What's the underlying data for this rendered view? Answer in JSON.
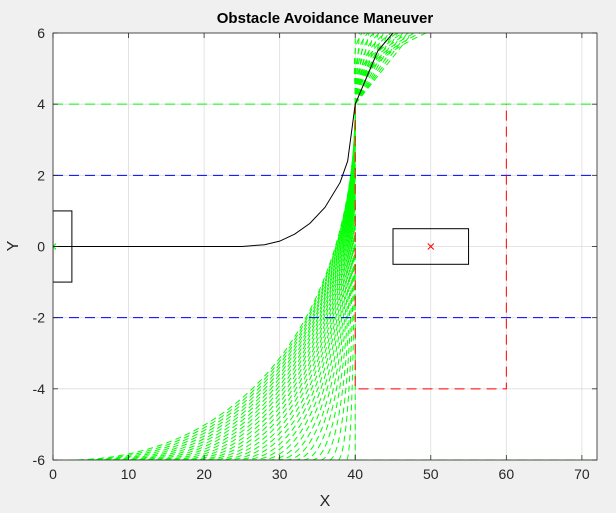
{
  "chart_data": {
    "type": "line",
    "title": "Obstacle Avoidance Maneuver",
    "xlabel": "X",
    "ylabel": "Y",
    "xlim": [
      0,
      72
    ],
    "ylim": [
      -6,
      6
    ],
    "x_ticks": [
      "0",
      "10",
      "20",
      "30",
      "40",
      "50",
      "60",
      "70"
    ],
    "y_ticks": [
      "6",
      "4",
      "2",
      "0",
      "-2",
      "-4",
      "-6"
    ],
    "grid": true,
    "colors": {
      "path": "#000000",
      "fan": "#00ff00",
      "lane_blue": "#0000ff",
      "lane_green": "#00ff00",
      "zone_red": "#ff0000",
      "box": "#000000"
    },
    "lane_lines": [
      {
        "y": 4,
        "style": "dashed",
        "color": "green"
      },
      {
        "y": 2,
        "style": "dashed",
        "color": "blue"
      },
      {
        "y": -2,
        "style": "dashed",
        "color": "blue"
      },
      {
        "y": -6,
        "style": "dashed",
        "color": "green"
      }
    ],
    "red_zone": {
      "x": [
        40,
        60
      ],
      "y": [
        -4,
        4
      ]
    },
    "ego_vehicle": {
      "x": [
        0,
        2.5
      ],
      "y": [
        -1,
        1
      ],
      "center": [
        0,
        0
      ]
    },
    "obstacle": {
      "x": [
        45,
        55
      ],
      "y": [
        -0.5,
        0.5
      ],
      "center": [
        50,
        0
      ]
    },
    "path": [
      [
        0,
        0
      ],
      [
        25,
        0
      ],
      [
        28,
        0.05
      ],
      [
        30,
        0.15
      ],
      [
        32,
        0.35
      ],
      [
        34,
        0.65
      ],
      [
        36,
        1.1
      ],
      [
        38,
        1.8
      ],
      [
        39,
        2.4
      ],
      [
        40,
        4
      ],
      [
        43,
        5.5
      ],
      [
        45,
        6
      ]
    ],
    "fan_converge_point": [
      40,
      4
    ],
    "fan_start_x": {
      "min": 2,
      "max": 40
    }
  }
}
